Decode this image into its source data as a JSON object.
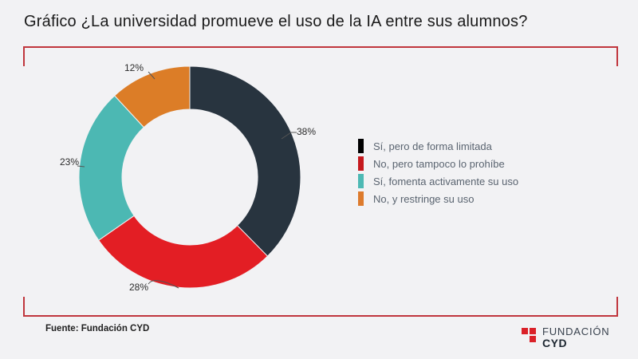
{
  "page": {
    "background": "#f2f2f4",
    "title": "Gráfico ¿La universidad promueve el uso de la IA entre sus alumnos?",
    "frame_color": "#c0363d",
    "source": "Fuente: Fundación CYD"
  },
  "chart_data": {
    "type": "pie",
    "subtype": "donut",
    "title": "¿La universidad promueve el uso de la IA entre sus alumnos?",
    "categories": [
      "Sí, pero de forma limitada",
      "No, pero tampoco lo prohíbe",
      "Sí, fomenta activamente su uso",
      "No, y restringe su uso"
    ],
    "values": [
      38,
      28,
      23,
      12
    ],
    "unit": "%",
    "colors": [
      "#28343f",
      "#e31e24",
      "#4cb8b3",
      "#dc7d27"
    ],
    "labels": [
      "38%",
      "28%",
      "23%",
      "12%"
    ],
    "start_angle_deg": 0,
    "direction": "clockwise",
    "legend_position": "right",
    "donut_hole_ratio": 0.61
  },
  "legend": {
    "items": [
      {
        "label": "Sí, pero de forma limitada",
        "color": "#000000"
      },
      {
        "label": "No, pero tampoco lo prohíbe",
        "color": "#c5191e"
      },
      {
        "label": "Sí, fomenta activamente su uso",
        "color": "#4db9b4"
      },
      {
        "label": "No, y restringe su uso",
        "color": "#dd7b2d"
      }
    ]
  },
  "footer": {
    "source": "Fuente: Fundación CYD",
    "logo": {
      "icon": "cyd-squares-icon",
      "line1": "FUNDACIÓN",
      "line2": "CYD",
      "accent_color": "#da2128"
    }
  }
}
